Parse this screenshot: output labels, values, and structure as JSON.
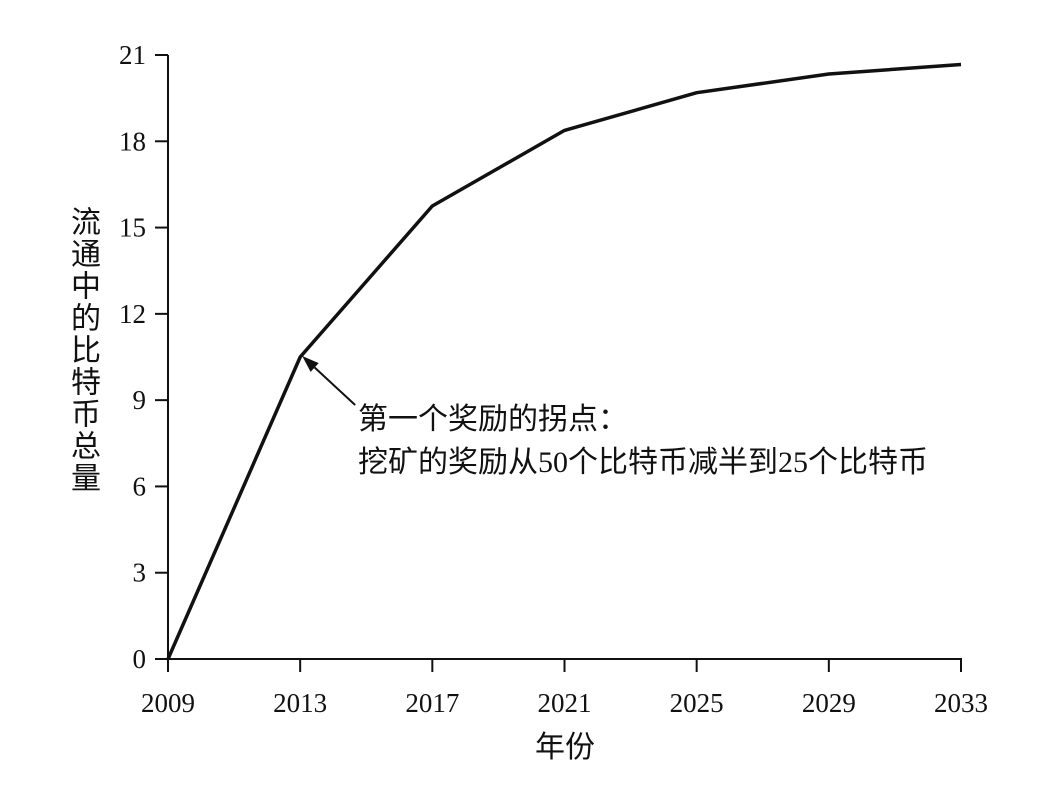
{
  "chart_data": {
    "type": "line",
    "x": [
      2009,
      2013,
      2017,
      2021,
      2025,
      2029,
      2033
    ],
    "series": [
      {
        "values": [
          0,
          10.5,
          15.75,
          18.38,
          19.69,
          20.34,
          20.67
        ]
      }
    ],
    "xlabel": "年份",
    "ylabel": "流通中的比特币总量",
    "xticks": [
      "2009",
      "2013",
      "2017",
      "2021",
      "2025",
      "2029",
      "2033"
    ],
    "yticks": [
      "0",
      "3",
      "6",
      "9",
      "12",
      "15",
      "18",
      "21"
    ],
    "xlim": [
      2009,
      2033
    ],
    "ylim": [
      0,
      21
    ],
    "grid": false,
    "legend": "none",
    "annotation": {
      "line1": "第一个奖励的拐点：",
      "line2": "挖矿的奖励从50个比特币减半到25个比特币",
      "target_x": 2013,
      "target_y": 10.5
    }
  },
  "colors": {
    "line": "#111111",
    "axis": "#111111",
    "background": "#ffffff"
  }
}
